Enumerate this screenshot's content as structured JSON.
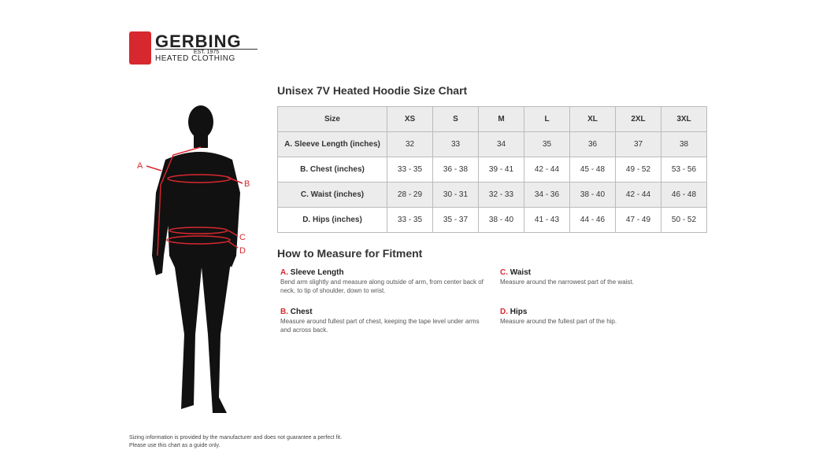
{
  "logo": {
    "brand": "GERBING",
    "est": "EST. 1975",
    "sub": "HEATED CLOTHING"
  },
  "figure": {
    "labels": [
      "A",
      "B",
      "C",
      "D"
    ]
  },
  "chart": {
    "title": "Unisex 7V Heated Hoodie Size Chart",
    "header": [
      "Size",
      "XS",
      "S",
      "M",
      "L",
      "XL",
      "2XL",
      "3XL"
    ],
    "rows": [
      {
        "label": "A. Sleeve Length (inches)",
        "values": [
          "32",
          "33",
          "34",
          "35",
          "36",
          "37",
          "38"
        ]
      },
      {
        "label": "B. Chest (inches)",
        "values": [
          "33 - 35",
          "36 - 38",
          "39 - 41",
          "42 - 44",
          "45 - 48",
          "49 - 52",
          "53 - 56"
        ]
      },
      {
        "label": "C. Waist (inches)",
        "values": [
          "28 - 29",
          "30 - 31",
          "32 - 33",
          "34 - 36",
          "38 - 40",
          "42 - 44",
          "46 - 48"
        ]
      },
      {
        "label": "D. Hips (inches)",
        "values": [
          "33 - 35",
          "35 - 37",
          "38 - 40",
          "41 - 43",
          "44 - 46",
          "47 - 49",
          "50 - 52"
        ]
      }
    ]
  },
  "measure": {
    "title": "How to Measure for Fitment",
    "items": [
      {
        "letter": "A.",
        "name": "Sleeve Length",
        "text": "Bend arm slightly and measure along outside of arm, from center back of neck, to tip of shoulder, down to wrist."
      },
      {
        "letter": "B.",
        "name": "Chest",
        "text": "Measure around fullest part of chest, keeping the tape level under arms and across back."
      },
      {
        "letter": "C.",
        "name": "Waist",
        "text": "Measure around the narrowest part of the waist."
      },
      {
        "letter": "D.",
        "name": "Hips",
        "text": "Measure around the fullest part of the hip."
      }
    ]
  },
  "footer": {
    "line1": "Sizing information is provided by the manufacturer and does not guarantee a perfect fit.",
    "line2": "Please use this chart as a guide only."
  },
  "colors": {
    "accent": "#d7282f"
  }
}
